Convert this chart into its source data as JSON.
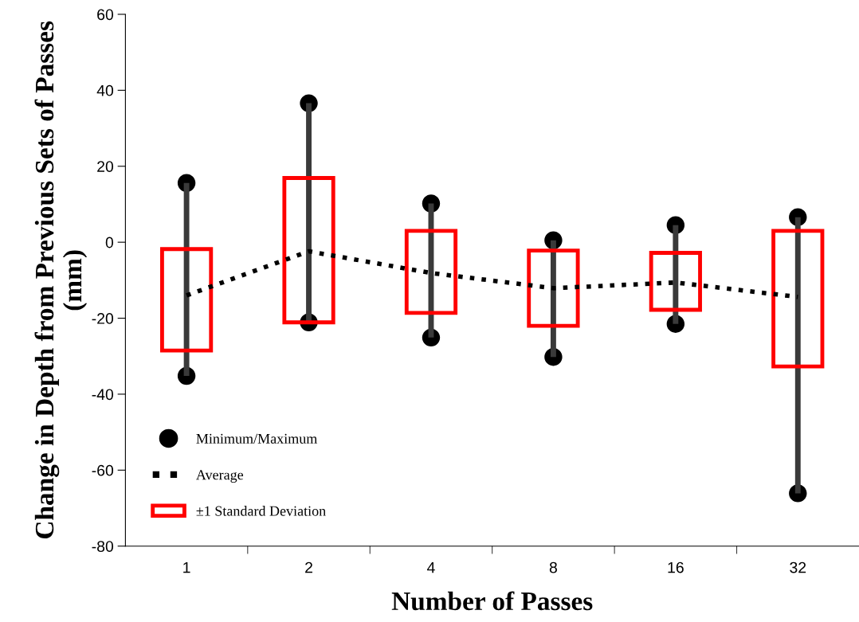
{
  "chart_data": {
    "type": "bar",
    "xlabel": "Number of Passes",
    "ylabel": "Change in Depth from Previous Sets of Passes (mm)",
    "categories": [
      "1",
      "2",
      "4",
      "8",
      "16",
      "32"
    ],
    "ylim": [
      -80,
      60
    ],
    "yticks": [
      -80,
      -60,
      -40,
      -20,
      0,
      20,
      40,
      60
    ],
    "grid": false,
    "legend": "bottom left",
    "series": [
      {
        "color": "#3a3a3a",
        "base": [
          -35.2,
          -21.1,
          -25.1,
          -30.2,
          -21.5,
          -66.1
        ],
        "values": [
          50.8,
          57.7,
          35.3,
          30.7,
          26.0,
          72.7
        ]
      },
      {
        "name": "Minimum/Maximum",
        "type": "scatter",
        "color": "#000000",
        "marker": "circle",
        "x": [
          "1",
          "1",
          "2",
          "2",
          "4",
          "4",
          "8",
          "8",
          "16",
          "16",
          "32",
          "32"
        ],
        "values": [
          -35.2,
          15.6,
          -21.1,
          36.6,
          -25.1,
          10.2,
          -30.2,
          0.5,
          -21.5,
          4.5,
          -66.1,
          6.6
        ]
      },
      {
        "name": "Average",
        "type": "line",
        "color": "#000000",
        "line_style": "dotted",
        "values": [
          -14,
          -2.4,
          -8.1,
          -12.1,
          -10.6,
          -14.4
        ]
      },
      {
        "name": "±1 Standard Deviation",
        "type": "bar",
        "color": "#ff0000",
        "base": [
          -28.5,
          -21.1,
          -18.6,
          -22,
          -17.8,
          -32.7
        ],
        "values": [
          26.7,
          38.0,
          21.6,
          19.8,
          15.0,
          35.7
        ]
      }
    ]
  }
}
